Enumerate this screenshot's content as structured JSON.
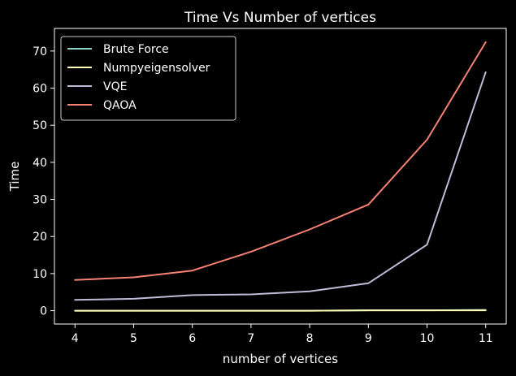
{
  "chart_data": {
    "type": "line",
    "title": "Time Vs Number of vertices",
    "xlabel": "number of vertices",
    "ylabel": "Time",
    "x": [
      4,
      5,
      6,
      7,
      8,
      9,
      10,
      11
    ],
    "xlim": [
      3.65,
      11.35
    ],
    "ylim": [
      -3.6,
      76.1
    ],
    "xticks": [
      4,
      5,
      6,
      7,
      8,
      9,
      10,
      11
    ],
    "yticks": [
      0,
      10,
      20,
      30,
      40,
      50,
      60,
      70
    ],
    "grid": false,
    "legend_position": "upper-left",
    "background": "#000000",
    "series": [
      {
        "name": "Brute Force",
        "color": "#8dd3c7",
        "values": [
          0.0,
          0.0,
          0.0,
          0.0,
          0.0,
          0.1,
          0.1,
          0.2
        ]
      },
      {
        "name": "Numpyeigensolver",
        "color": "#feffb3",
        "values": [
          0.0,
          0.0,
          0.0,
          0.0,
          0.0,
          0.1,
          0.1,
          0.1
        ]
      },
      {
        "name": "VQE",
        "color": "#bfbbd9",
        "values": [
          2.9,
          3.2,
          4.2,
          4.4,
          5.2,
          7.4,
          17.8,
          64.3
        ]
      },
      {
        "name": "QAOA",
        "color": "#fa8174",
        "values": [
          8.3,
          9.0,
          10.8,
          15.9,
          21.9,
          28.6,
          46.1,
          72.4
        ]
      }
    ]
  }
}
